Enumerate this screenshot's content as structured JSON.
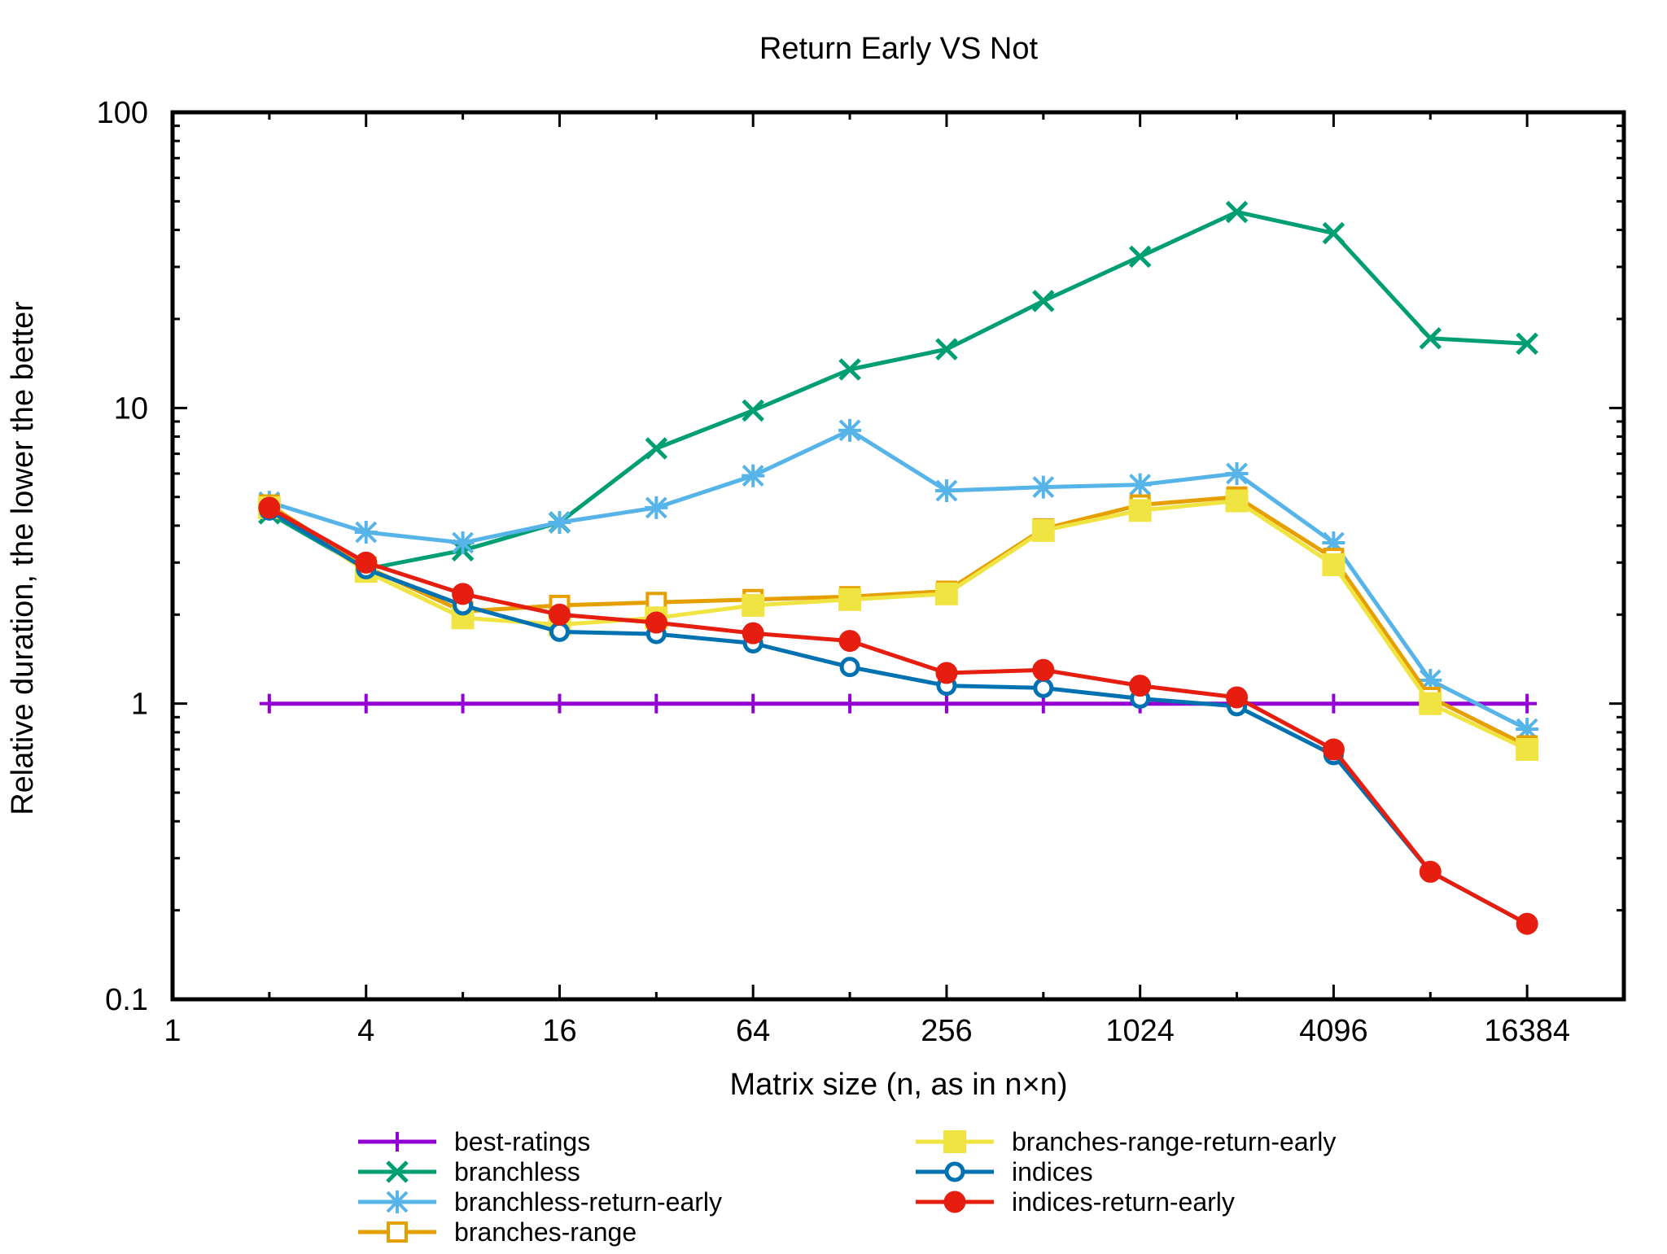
{
  "chart_data": {
    "type": "line",
    "title": "Return Early VS Not",
    "xlabel": "Matrix size (n, as in n×n)",
    "ylabel": "Relative duration, the lower the better",
    "x_scale": "log2",
    "y_scale": "log10",
    "xlim": [
      1,
      32768
    ],
    "ylim": [
      0.1,
      100
    ],
    "x_ticks": [
      1,
      4,
      16,
      64,
      256,
      1024,
      4096,
      16384
    ],
    "x_tick_labels": [
      "1",
      "4",
      "16",
      "64",
      "256",
      "1024",
      "4096",
      "16384"
    ],
    "y_ticks": [
      0.1,
      1,
      10,
      100
    ],
    "y_tick_labels": [
      "0.1",
      "1",
      "10",
      "100"
    ],
    "grid": false,
    "legend_position": "bottom",
    "x": [
      2,
      4,
      8,
      16,
      32,
      64,
      128,
      256,
      512,
      1024,
      2048,
      4096,
      8192,
      16384
    ],
    "series": [
      {
        "name": "best-ratings",
        "color": "#9400d3",
        "marker": "plus",
        "values": [
          1,
          1,
          1,
          1,
          1,
          1,
          1,
          1,
          1,
          1,
          1,
          1,
          1,
          1
        ]
      },
      {
        "name": "branchless",
        "color": "#009e73",
        "marker": "cross",
        "values": [
          4.4,
          2.85,
          3.3,
          4.1,
          7.3,
          9.8,
          13.5,
          15.8,
          23,
          32.5,
          46,
          39,
          17.2,
          16.5
        ]
      },
      {
        "name": "branchless-return-early",
        "color": "#56b4e9",
        "marker": "star",
        "values": [
          4.8,
          3.8,
          3.5,
          4.1,
          4.6,
          5.9,
          8.4,
          5.25,
          5.4,
          5.5,
          6.0,
          3.5,
          1.2,
          0.82
        ]
      },
      {
        "name": "branches-range",
        "color": "#e69f00",
        "marker": "open-square",
        "values": [
          4.7,
          2.9,
          2.05,
          2.15,
          2.2,
          2.25,
          2.3,
          2.4,
          3.9,
          4.7,
          5.0,
          3.1,
          1.05,
          0.72
        ]
      },
      {
        "name": "branches-range-return-early",
        "color": "#f0e442",
        "marker": "filled-square",
        "values": [
          4.6,
          2.8,
          1.95,
          1.85,
          1.95,
          2.15,
          2.25,
          2.35,
          3.85,
          4.5,
          4.85,
          2.95,
          1.0,
          0.7
        ]
      },
      {
        "name": "indices",
        "color": "#0072b2",
        "marker": "open-circle",
        "values": [
          4.5,
          2.85,
          2.15,
          1.75,
          1.72,
          1.6,
          1.33,
          1.15,
          1.13,
          1.04,
          0.98,
          0.67,
          0.27,
          0.18
        ]
      },
      {
        "name": "indices-return-early",
        "color": "#e51e10",
        "marker": "filled-circle",
        "values": [
          4.6,
          3.0,
          2.35,
          2.0,
          1.88,
          1.73,
          1.63,
          1.27,
          1.3,
          1.15,
          1.05,
          0.7,
          0.27,
          0.18
        ]
      }
    ]
  }
}
